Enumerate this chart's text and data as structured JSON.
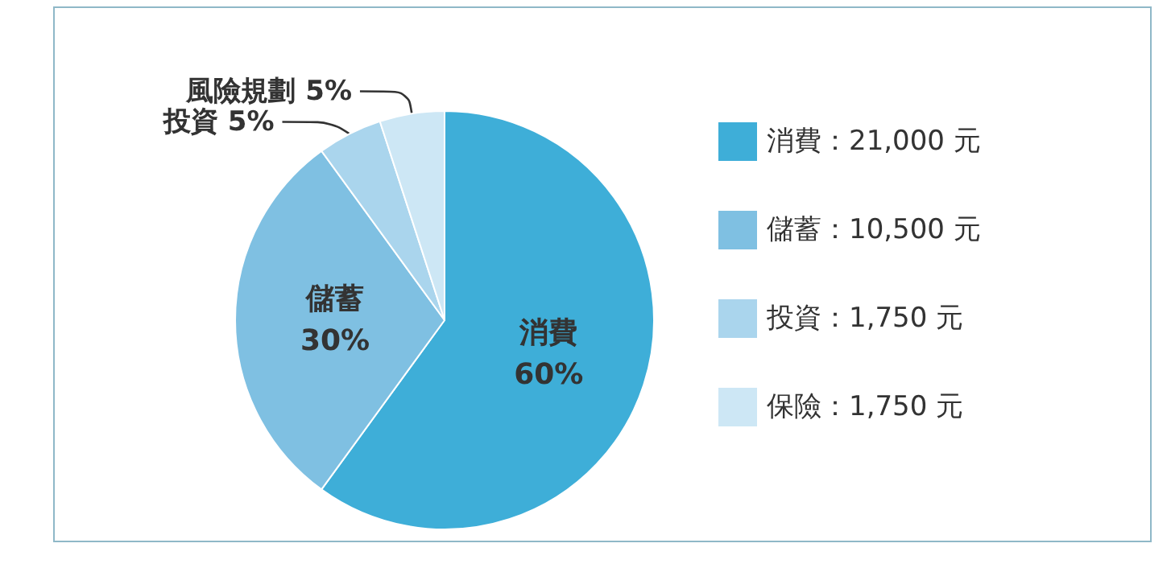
{
  "chart_data": {
    "type": "pie",
    "categories": [
      "消費：21,000 元",
      "儲蓄：10,500 元",
      "投資：1,750 元",
      "保險：1,750 元"
    ],
    "values": [
      21000,
      10500,
      1750,
      1750
    ],
    "colors": [
      "#3eaed8",
      "#7fc0e2",
      "#aad5ed",
      "#cde7f5"
    ],
    "value_labels": [
      "消費 60%",
      "儲蓄 30%",
      "投資 5%",
      "風險規劃 5%"
    ],
    "legend": "right"
  }
}
